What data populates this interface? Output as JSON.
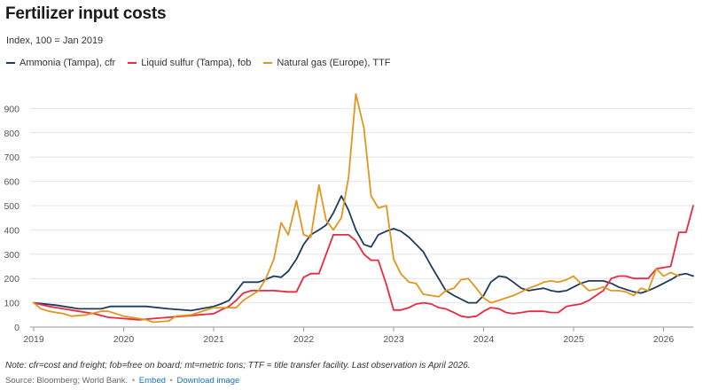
{
  "header": {
    "title": "Fertilizer input costs",
    "subtitle": "Index, 100 = Jan 2019"
  },
  "footer": {
    "note": "Note: cfr=cost and freight; fob=free on board; mt=metric tons; TTF = title transfer facility. Last observation is April 2026.",
    "source": "Source: Bloomberg; World Bank.",
    "separator": "•",
    "embed": "Embed",
    "download": "Download image"
  },
  "chart_data": {
    "type": "line",
    "x_unit": "year",
    "xlim": [
      2019,
      2026.33
    ],
    "ylim": [
      0,
      1000
    ],
    "y_ticks": [
      0,
      100,
      200,
      300,
      400,
      500,
      600,
      700,
      800,
      900
    ],
    "x_ticks": [
      "2019",
      "2020",
      "2021",
      "2022",
      "2023",
      "2024",
      "2025",
      "2026"
    ],
    "grid": true,
    "legend_position": "top-left",
    "series": [
      {
        "name": "Ammonia (Tampa), cfr",
        "color": "#1f3a5f",
        "points": [
          [
            2019.0,
            100
          ],
          [
            2019.25,
            90
          ],
          [
            2019.5,
            75
          ],
          [
            2019.75,
            75
          ],
          [
            2019.85,
            85
          ],
          [
            2020.0,
            85
          ],
          [
            2020.25,
            85
          ],
          [
            2020.5,
            75
          ],
          [
            2020.75,
            68
          ],
          [
            2021.0,
            85
          ],
          [
            2021.08,
            95
          ],
          [
            2021.17,
            110
          ],
          [
            2021.33,
            185
          ],
          [
            2021.5,
            185
          ],
          [
            2021.67,
            210
          ],
          [
            2021.75,
            205
          ],
          [
            2021.83,
            230
          ],
          [
            2021.92,
            280
          ],
          [
            2022.0,
            340
          ],
          [
            2022.08,
            380
          ],
          [
            2022.17,
            400
          ],
          [
            2022.25,
            420
          ],
          [
            2022.33,
            470
          ],
          [
            2022.42,
            540
          ],
          [
            2022.5,
            480
          ],
          [
            2022.58,
            400
          ],
          [
            2022.67,
            340
          ],
          [
            2022.75,
            330
          ],
          [
            2022.83,
            380
          ],
          [
            2022.92,
            395
          ],
          [
            2023.0,
            405
          ],
          [
            2023.08,
            395
          ],
          [
            2023.17,
            370
          ],
          [
            2023.25,
            340
          ],
          [
            2023.33,
            310
          ],
          [
            2023.42,
            250
          ],
          [
            2023.5,
            200
          ],
          [
            2023.58,
            150
          ],
          [
            2023.67,
            130
          ],
          [
            2023.75,
            115
          ],
          [
            2023.83,
            100
          ],
          [
            2023.92,
            100
          ],
          [
            2024.0,
            130
          ],
          [
            2024.08,
            185
          ],
          [
            2024.17,
            210
          ],
          [
            2024.25,
            205
          ],
          [
            2024.33,
            185
          ],
          [
            2024.42,
            160
          ],
          [
            2024.5,
            150
          ],
          [
            2024.58,
            155
          ],
          [
            2024.67,
            160
          ],
          [
            2024.75,
            150
          ],
          [
            2024.83,
            145
          ],
          [
            2024.92,
            150
          ],
          [
            2025.0,
            165
          ],
          [
            2025.08,
            180
          ],
          [
            2025.17,
            190
          ],
          [
            2025.25,
            190
          ],
          [
            2025.33,
            190
          ],
          [
            2025.42,
            180
          ],
          [
            2025.5,
            165
          ],
          [
            2025.58,
            155
          ],
          [
            2025.67,
            145
          ],
          [
            2025.75,
            140
          ],
          [
            2025.83,
            150
          ],
          [
            2025.92,
            165
          ],
          [
            2026.0,
            180
          ],
          [
            2026.08,
            195
          ],
          [
            2026.17,
            215
          ],
          [
            2026.25,
            220
          ],
          [
            2026.33,
            210
          ]
        ]
      },
      {
        "name": "Liquid sulfur (Tampa), fob",
        "color": "#e8293f",
        "points": [
          [
            2019.0,
            100
          ],
          [
            2019.17,
            85
          ],
          [
            2019.33,
            75
          ],
          [
            2019.5,
            65
          ],
          [
            2019.67,
            55
          ],
          [
            2019.83,
            40
          ],
          [
            2020.0,
            35
          ],
          [
            2020.17,
            30
          ],
          [
            2020.33,
            35
          ],
          [
            2020.5,
            40
          ],
          [
            2020.67,
            45
          ],
          [
            2020.83,
            50
          ],
          [
            2021.0,
            55
          ],
          [
            2021.08,
            70
          ],
          [
            2021.17,
            85
          ],
          [
            2021.25,
            110
          ],
          [
            2021.33,
            140
          ],
          [
            2021.42,
            150
          ],
          [
            2021.5,
            150
          ],
          [
            2021.67,
            150
          ],
          [
            2021.83,
            145
          ],
          [
            2021.92,
            145
          ],
          [
            2022.0,
            205
          ],
          [
            2022.08,
            220
          ],
          [
            2022.17,
            220
          ],
          [
            2022.25,
            300
          ],
          [
            2022.33,
            380
          ],
          [
            2022.42,
            380
          ],
          [
            2022.5,
            380
          ],
          [
            2022.58,
            355
          ],
          [
            2022.67,
            300
          ],
          [
            2022.75,
            275
          ],
          [
            2022.83,
            275
          ],
          [
            2022.92,
            175
          ],
          [
            2023.0,
            70
          ],
          [
            2023.08,
            70
          ],
          [
            2023.17,
            80
          ],
          [
            2023.25,
            95
          ],
          [
            2023.33,
            100
          ],
          [
            2023.42,
            95
          ],
          [
            2023.5,
            80
          ],
          [
            2023.58,
            75
          ],
          [
            2023.67,
            60
          ],
          [
            2023.75,
            45
          ],
          [
            2023.83,
            40
          ],
          [
            2023.92,
            45
          ],
          [
            2024.0,
            65
          ],
          [
            2024.08,
            80
          ],
          [
            2024.17,
            75
          ],
          [
            2024.25,
            60
          ],
          [
            2024.33,
            55
          ],
          [
            2024.42,
            60
          ],
          [
            2024.5,
            65
          ],
          [
            2024.58,
            65
          ],
          [
            2024.67,
            65
          ],
          [
            2024.75,
            60
          ],
          [
            2024.83,
            60
          ],
          [
            2024.92,
            85
          ],
          [
            2025.0,
            90
          ],
          [
            2025.08,
            95
          ],
          [
            2025.17,
            110
          ],
          [
            2025.25,
            130
          ],
          [
            2025.33,
            150
          ],
          [
            2025.42,
            200
          ],
          [
            2025.5,
            210
          ],
          [
            2025.58,
            210
          ],
          [
            2025.67,
            200
          ],
          [
            2025.75,
            200
          ],
          [
            2025.83,
            200
          ],
          [
            2025.92,
            240
          ],
          [
            2026.0,
            245
          ],
          [
            2026.08,
            250
          ],
          [
            2026.17,
            390
          ],
          [
            2026.25,
            390
          ],
          [
            2026.33,
            500
          ]
        ]
      },
      {
        "name": "Natural gas (Europe), TTF",
        "color": "#e0961f",
        "points": [
          [
            2019.0,
            100
          ],
          [
            2019.08,
            75
          ],
          [
            2019.17,
            65
          ],
          [
            2019.33,
            55
          ],
          [
            2019.42,
            45
          ],
          [
            2019.58,
            50
          ],
          [
            2019.75,
            65
          ],
          [
            2019.83,
            65
          ],
          [
            2020.0,
            45
          ],
          [
            2020.17,
            35
          ],
          [
            2020.25,
            30
          ],
          [
            2020.33,
            20
          ],
          [
            2020.5,
            25
          ],
          [
            2020.58,
            45
          ],
          [
            2020.75,
            50
          ],
          [
            2020.83,
            60
          ],
          [
            2021.0,
            80
          ],
          [
            2021.08,
            80
          ],
          [
            2021.17,
            80
          ],
          [
            2021.25,
            80
          ],
          [
            2021.33,
            110
          ],
          [
            2021.5,
            150
          ],
          [
            2021.58,
            200
          ],
          [
            2021.67,
            280
          ],
          [
            2021.75,
            430
          ],
          [
            2021.83,
            380
          ],
          [
            2021.92,
            520
          ],
          [
            2022.0,
            380
          ],
          [
            2022.08,
            370
          ],
          [
            2022.17,
            585
          ],
          [
            2022.25,
            440
          ],
          [
            2022.33,
            400
          ],
          [
            2022.42,
            450
          ],
          [
            2022.5,
            620
          ],
          [
            2022.58,
            960
          ],
          [
            2022.67,
            820
          ],
          [
            2022.75,
            540
          ],
          [
            2022.83,
            490
          ],
          [
            2022.92,
            500
          ],
          [
            2023.0,
            280
          ],
          [
            2023.08,
            220
          ],
          [
            2023.17,
            185
          ],
          [
            2023.25,
            180
          ],
          [
            2023.33,
            135
          ],
          [
            2023.42,
            130
          ],
          [
            2023.5,
            125
          ],
          [
            2023.58,
            150
          ],
          [
            2023.67,
            160
          ],
          [
            2023.75,
            195
          ],
          [
            2023.83,
            200
          ],
          [
            2023.92,
            160
          ],
          [
            2024.0,
            120
          ],
          [
            2024.08,
            100
          ],
          [
            2024.17,
            110
          ],
          [
            2024.25,
            120
          ],
          [
            2024.33,
            130
          ],
          [
            2024.42,
            145
          ],
          [
            2024.5,
            160
          ],
          [
            2024.58,
            170
          ],
          [
            2024.67,
            185
          ],
          [
            2024.75,
            190
          ],
          [
            2024.83,
            185
          ],
          [
            2024.92,
            195
          ],
          [
            2025.0,
            210
          ],
          [
            2025.08,
            180
          ],
          [
            2025.17,
            150
          ],
          [
            2025.25,
            155
          ],
          [
            2025.33,
            165
          ],
          [
            2025.42,
            150
          ],
          [
            2025.5,
            150
          ],
          [
            2025.58,
            145
          ],
          [
            2025.67,
            130
          ],
          [
            2025.75,
            160
          ],
          [
            2025.83,
            150
          ],
          [
            2025.92,
            240
          ],
          [
            2026.0,
            210
          ],
          [
            2026.08,
            225
          ],
          [
            2026.17,
            210
          ]
        ]
      }
    ]
  }
}
